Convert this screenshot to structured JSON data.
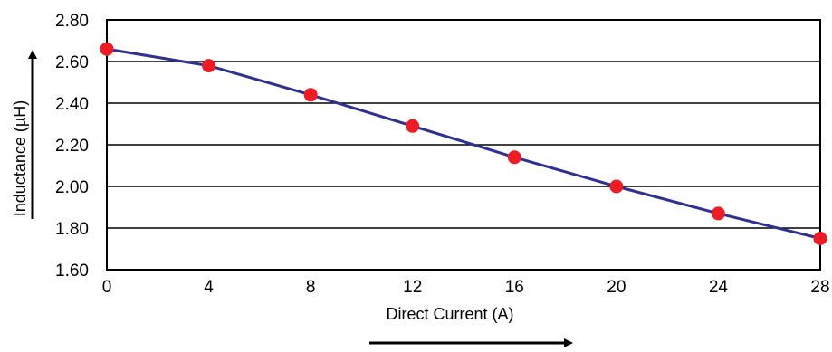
{
  "chart_data": {
    "type": "line",
    "title": "",
    "xlabel": "Direct Current (A)",
    "ylabel": "Inductance (µH)",
    "xlim": [
      0,
      28
    ],
    "ylim": [
      1.6,
      2.8
    ],
    "x_ticks": [
      0,
      4,
      8,
      12,
      16,
      20,
      24,
      28
    ],
    "x_tick_labels": [
      "0",
      "4",
      "8",
      "12",
      "16",
      "20",
      "24",
      "28"
    ],
    "y_ticks": [
      1.6,
      1.8,
      2.0,
      2.2,
      2.4,
      2.6,
      2.8
    ],
    "y_tick_labels": [
      "1.60",
      "1.80",
      "2.00",
      "2.20",
      "2.40",
      "2.60",
      "2.80"
    ],
    "grid": "horizontal",
    "legend": "none",
    "colors": {
      "line": "#2e3192",
      "marker": "#ee1c25",
      "grid": "#000000",
      "axis": "#000000"
    },
    "series": [
      {
        "x": [
          0,
          4,
          8,
          12,
          16,
          20,
          24,
          28
        ],
        "values": [
          2.66,
          2.58,
          2.44,
          2.29,
          2.14,
          2.0,
          1.87,
          1.75
        ]
      }
    ],
    "annotations": [
      "arrow-up-beside-y-axis-label",
      "arrow-right-below-x-axis-label"
    ]
  }
}
